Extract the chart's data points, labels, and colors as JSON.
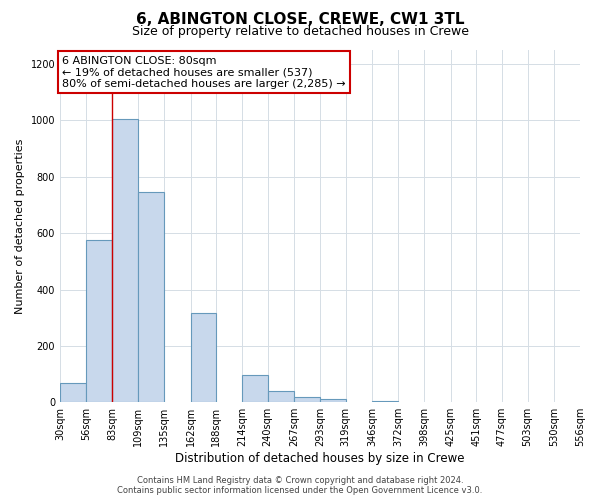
{
  "title": "6, ABINGTON CLOSE, CREWE, CW1 3TL",
  "subtitle": "Size of property relative to detached houses in Crewe",
  "xlabel": "Distribution of detached houses by size in Crewe",
  "ylabel": "Number of detached properties",
  "tick_positions": [
    30,
    56,
    83,
    109,
    135,
    162,
    188,
    214,
    240,
    267,
    293,
    319,
    346,
    372,
    398,
    425,
    451,
    477,
    503,
    530,
    556
  ],
  "bar_heights": [
    68,
    575,
    1005,
    745,
    0,
    315,
    0,
    95,
    40,
    20,
    10,
    0,
    5,
    0,
    0,
    0,
    0,
    0,
    0,
    0
  ],
  "bar_color": "#c8d8ec",
  "bar_edge_color": "#6699bb",
  "grid_color": "#d5dde5",
  "background_color": "#ffffff",
  "property_line_x": 83,
  "annotation_text": "6 ABINGTON CLOSE: 80sqm\n← 19% of detached houses are smaller (537)\n80% of semi-detached houses are larger (2,285) →",
  "annotation_box_color": "#ffffff",
  "annotation_box_edge_color": "#cc0000",
  "property_line_color": "#cc0000",
  "tick_labels": [
    "30sqm",
    "56sqm",
    "83sqm",
    "109sqm",
    "135sqm",
    "162sqm",
    "188sqm",
    "214sqm",
    "240sqm",
    "267sqm",
    "293sqm",
    "319sqm",
    "346sqm",
    "372sqm",
    "398sqm",
    "425sqm",
    "451sqm",
    "477sqm",
    "503sqm",
    "530sqm",
    "556sqm"
  ],
  "ylim": [
    0,
    1250
  ],
  "yticks": [
    0,
    200,
    400,
    600,
    800,
    1000,
    1200
  ],
  "footer_line1": "Contains HM Land Registry data © Crown copyright and database right 2024.",
  "footer_line2": "Contains public sector information licensed under the Open Government Licence v3.0.",
  "title_fontsize": 11,
  "subtitle_fontsize": 9,
  "xlabel_fontsize": 8.5,
  "ylabel_fontsize": 8,
  "tick_fontsize": 7,
  "annot_fontsize": 8,
  "footer_fontsize": 6
}
